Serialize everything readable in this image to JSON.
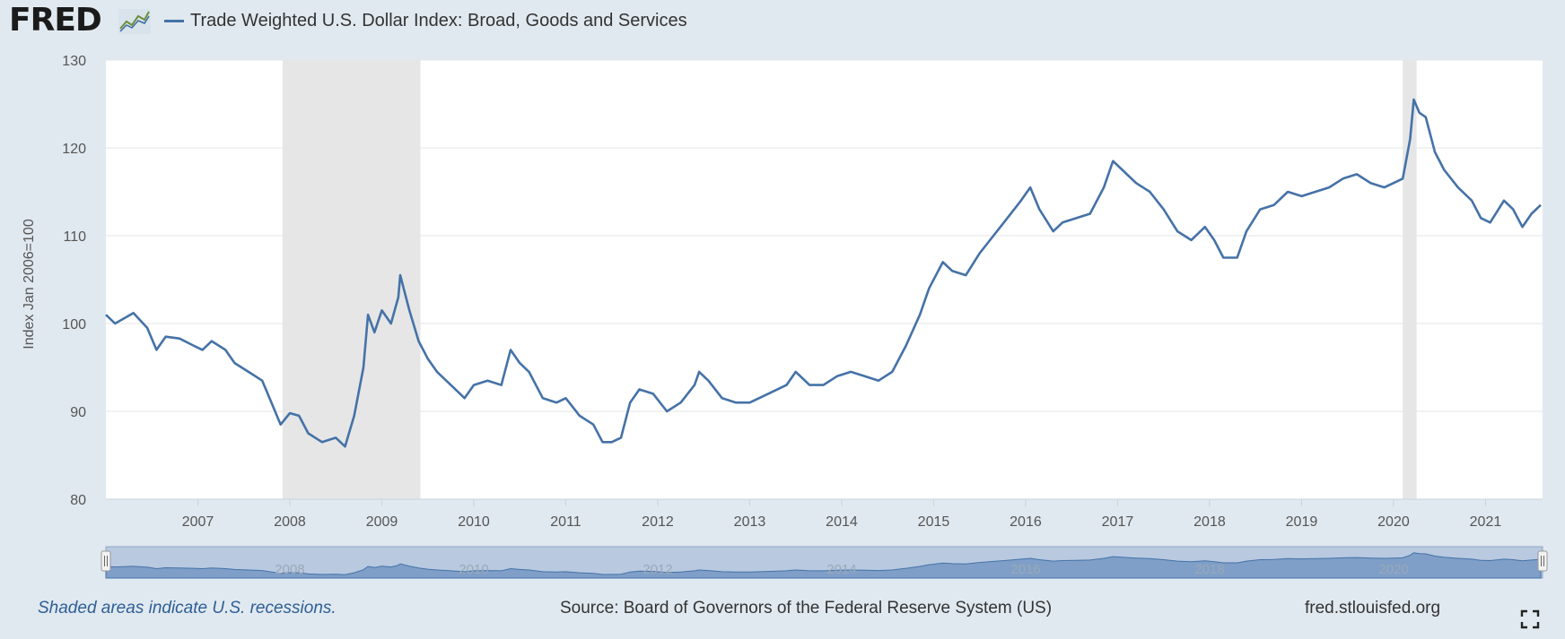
{
  "header": {
    "logo_text": "FRED",
    "series_title": "Trade Weighted U.S. Dollar Index: Broad, Goods and Services",
    "series_color": "#4572a7"
  },
  "footer": {
    "note": "Shaded areas indicate U.S. recessions.",
    "source": "Source: Board of Governors of the Federal Reserve System (US)",
    "site": "fred.stlouisfed.org",
    "fullscreen_icon": "fullscreen-icon"
  },
  "chart_data": {
    "type": "line",
    "ylabel": "Index Jan 2006=100",
    "ylim": [
      80,
      130
    ],
    "yticks": [
      80,
      90,
      100,
      110,
      120,
      130
    ],
    "xlim": [
      2006.0,
      2021.62
    ],
    "xticks": [
      2007,
      2008,
      2009,
      2010,
      2011,
      2012,
      2013,
      2014,
      2015,
      2016,
      2017,
      2018,
      2019,
      2020,
      2021
    ],
    "xtick_labels": [
      "2007",
      "2008",
      "2009",
      "2010",
      "2011",
      "2012",
      "2013",
      "2014",
      "2015",
      "2016",
      "2017",
      "2018",
      "2019",
      "2020",
      "2021"
    ],
    "recessions": [
      [
        2007.92,
        2009.42
      ],
      [
        2020.1,
        2020.25
      ]
    ],
    "navigator_labels": [
      {
        "x": 2008,
        "label": "2008"
      },
      {
        "x": 2010,
        "label": "2010"
      },
      {
        "x": 2012,
        "label": "2012"
      },
      {
        "x": 2014,
        "label": "2014"
      },
      {
        "x": 2016,
        "label": "2016"
      },
      {
        "x": 2018,
        "label": "2018"
      },
      {
        "x": 2020,
        "label": "2020"
      }
    ],
    "series": [
      {
        "name": "Trade Weighted U.S. Dollar Index: Broad, Goods and Services",
        "color": "#4572a7",
        "points": [
          [
            2006.0,
            101.0
          ],
          [
            2006.1,
            100.0
          ],
          [
            2006.3,
            101.2
          ],
          [
            2006.45,
            99.5
          ],
          [
            2006.55,
            97.0
          ],
          [
            2006.65,
            98.5
          ],
          [
            2006.8,
            98.3
          ],
          [
            2006.95,
            97.5
          ],
          [
            2007.05,
            97.0
          ],
          [
            2007.15,
            98.0
          ],
          [
            2007.3,
            97.0
          ],
          [
            2007.4,
            95.5
          ],
          [
            2007.55,
            94.5
          ],
          [
            2007.7,
            93.5
          ],
          [
            2007.8,
            91.0
          ],
          [
            2007.9,
            88.5
          ],
          [
            2008.0,
            89.8
          ],
          [
            2008.1,
            89.5
          ],
          [
            2008.2,
            87.5
          ],
          [
            2008.35,
            86.5
          ],
          [
            2008.5,
            87.0
          ],
          [
            2008.6,
            86.0
          ],
          [
            2008.7,
            89.5
          ],
          [
            2008.8,
            95.0
          ],
          [
            2008.85,
            101.0
          ],
          [
            2008.92,
            99.0
          ],
          [
            2009.0,
            101.5
          ],
          [
            2009.1,
            100.0
          ],
          [
            2009.18,
            103.0
          ],
          [
            2009.2,
            105.5
          ],
          [
            2009.3,
            101.5
          ],
          [
            2009.4,
            98.0
          ],
          [
            2009.5,
            96.0
          ],
          [
            2009.6,
            94.5
          ],
          [
            2009.75,
            93.0
          ],
          [
            2009.9,
            91.5
          ],
          [
            2010.0,
            93.0
          ],
          [
            2010.15,
            93.5
          ],
          [
            2010.3,
            93.0
          ],
          [
            2010.4,
            97.0
          ],
          [
            2010.5,
            95.5
          ],
          [
            2010.6,
            94.5
          ],
          [
            2010.75,
            91.5
          ],
          [
            2010.9,
            91.0
          ],
          [
            2011.0,
            91.5
          ],
          [
            2011.15,
            89.5
          ],
          [
            2011.3,
            88.5
          ],
          [
            2011.4,
            86.5
          ],
          [
            2011.5,
            86.5
          ],
          [
            2011.6,
            87.0
          ],
          [
            2011.7,
            91.0
          ],
          [
            2011.8,
            92.5
          ],
          [
            2011.95,
            92.0
          ],
          [
            2012.1,
            90.0
          ],
          [
            2012.25,
            91.0
          ],
          [
            2012.4,
            93.0
          ],
          [
            2012.45,
            94.5
          ],
          [
            2012.55,
            93.5
          ],
          [
            2012.7,
            91.5
          ],
          [
            2012.85,
            91.0
          ],
          [
            2013.0,
            91.0
          ],
          [
            2013.2,
            92.0
          ],
          [
            2013.4,
            93.0
          ],
          [
            2013.5,
            94.5
          ],
          [
            2013.65,
            93.0
          ],
          [
            2013.8,
            93.0
          ],
          [
            2013.95,
            94.0
          ],
          [
            2014.1,
            94.5
          ],
          [
            2014.25,
            94.0
          ],
          [
            2014.4,
            93.5
          ],
          [
            2014.55,
            94.5
          ],
          [
            2014.7,
            97.5
          ],
          [
            2014.85,
            101.0
          ],
          [
            2014.95,
            104.0
          ],
          [
            2015.1,
            107.0
          ],
          [
            2015.2,
            106.0
          ],
          [
            2015.35,
            105.5
          ],
          [
            2015.5,
            108.0
          ],
          [
            2015.65,
            110.0
          ],
          [
            2015.8,
            112.0
          ],
          [
            2015.95,
            114.0
          ],
          [
            2016.05,
            115.5
          ],
          [
            2016.15,
            113.0
          ],
          [
            2016.3,
            110.5
          ],
          [
            2016.4,
            111.5
          ],
          [
            2016.55,
            112.0
          ],
          [
            2016.7,
            112.5
          ],
          [
            2016.85,
            115.5
          ],
          [
            2016.95,
            118.5
          ],
          [
            2017.05,
            117.5
          ],
          [
            2017.2,
            116.0
          ],
          [
            2017.35,
            115.0
          ],
          [
            2017.5,
            113.0
          ],
          [
            2017.65,
            110.5
          ],
          [
            2017.8,
            109.5
          ],
          [
            2017.95,
            111.0
          ],
          [
            2018.05,
            109.5
          ],
          [
            2018.15,
            107.5
          ],
          [
            2018.3,
            107.5
          ],
          [
            2018.4,
            110.5
          ],
          [
            2018.55,
            113.0
          ],
          [
            2018.7,
            113.5
          ],
          [
            2018.85,
            115.0
          ],
          [
            2019.0,
            114.5
          ],
          [
            2019.15,
            115.0
          ],
          [
            2019.3,
            115.5
          ],
          [
            2019.45,
            116.5
          ],
          [
            2019.6,
            117.0
          ],
          [
            2019.75,
            116.0
          ],
          [
            2019.9,
            115.5
          ],
          [
            2020.0,
            116.0
          ],
          [
            2020.1,
            116.5
          ],
          [
            2020.18,
            121.0
          ],
          [
            2020.22,
            125.5
          ],
          [
            2020.28,
            124.0
          ],
          [
            2020.35,
            123.5
          ],
          [
            2020.45,
            119.5
          ],
          [
            2020.55,
            117.5
          ],
          [
            2020.7,
            115.5
          ],
          [
            2020.85,
            114.0
          ],
          [
            2020.95,
            112.0
          ],
          [
            2021.05,
            111.5
          ],
          [
            2021.2,
            114.0
          ],
          [
            2021.3,
            113.0
          ],
          [
            2021.4,
            111.0
          ],
          [
            2021.5,
            112.5
          ],
          [
            2021.6,
            113.5
          ]
        ]
      }
    ]
  }
}
